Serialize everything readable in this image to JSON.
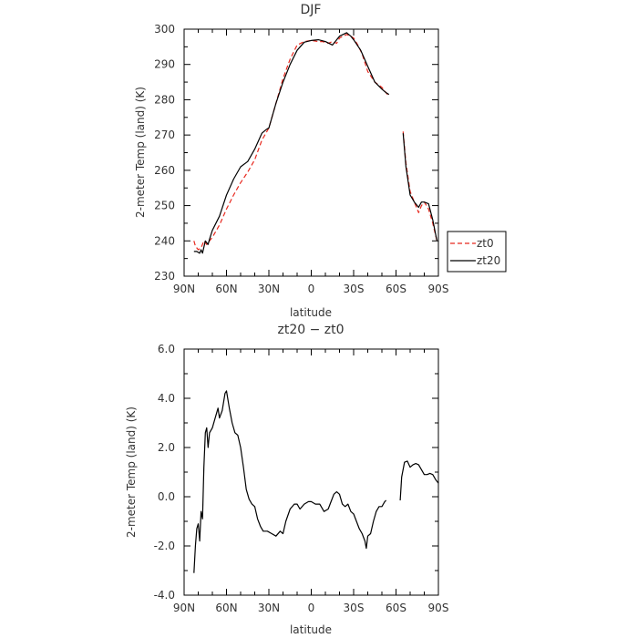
{
  "chart_data": [
    {
      "type": "line",
      "title": "DJF",
      "xlabel": "latitude",
      "ylabel": "2-meter Temp (land) (K)",
      "ylim": [
        230,
        300
      ],
      "xlim": [
        -90,
        90
      ],
      "x_ticks": [
        -90,
        -60,
        -30,
        0,
        30,
        60,
        90
      ],
      "x_tick_labels": [
        "90N",
        "60N",
        "30N",
        "0",
        "30S",
        "60S",
        "90S"
      ],
      "y_ticks": [
        230,
        240,
        250,
        260,
        270,
        280,
        290,
        300
      ],
      "y_tick_labels": [
        "230",
        "240",
        "250",
        "260",
        "270",
        "280",
        "290",
        "300"
      ],
      "grid": false,
      "legend_position": "right",
      "series": [
        {
          "name": "zt0",
          "color": "#e8281e",
          "dash": "dashed",
          "segments": [
            [
              [
                -83,
                240
              ],
              [
                -82,
                238.5
              ],
              [
                -80,
                237.5
              ],
              [
                -78,
                238
              ],
              [
                -76,
                240
              ],
              [
                -74,
                239
              ],
              [
                -72,
                240
              ],
              [
                -70,
                241
              ],
              [
                -65,
                244.5
              ],
              [
                -60,
                249
              ],
              [
                -55,
                253
              ],
              [
                -50,
                256.5
              ],
              [
                -45,
                259.5
              ],
              [
                -40,
                263
              ],
              [
                -35,
                268.5
              ],
              [
                -30,
                272
              ],
              [
                -25,
                279
              ],
              [
                -20,
                286
              ],
              [
                -15,
                291.5
              ],
              [
                -10,
                295.5
              ],
              [
                -5,
                296.5
              ],
              [
                0,
                296.8
              ],
              [
                5,
                296.5
              ],
              [
                8,
                296.5
              ],
              [
                12,
                296
              ],
              [
                15,
                296.5
              ],
              [
                18,
                296
              ],
              [
                20,
                297.5
              ],
              [
                25,
                298.5
              ],
              [
                28,
                298
              ],
              [
                30,
                297.5
              ],
              [
                33,
                295.5
              ],
              [
                36,
                293
              ],
              [
                40,
                288
              ],
              [
                45,
                285
              ],
              [
                50,
                283.5
              ],
              [
                53,
                282
              ],
              [
                55,
                281
              ]
            ],
            [
              [
                65,
                271
              ],
              [
                67,
                262
              ],
              [
                70,
                254
              ],
              [
                73,
                251
              ],
              [
                76,
                248
              ],
              [
                78,
                250
              ],
              [
                80,
                251
              ],
              [
                83,
                249
              ],
              [
                86,
                245
              ],
              [
                89,
                240
              ]
            ]
          ]
        },
        {
          "name": "zt20",
          "color": "#000000",
          "dash": "solid",
          "segments": [
            [
              [
                -83,
                237
              ],
              [
                -81,
                237
              ],
              [
                -79,
                236.5
              ],
              [
                -78,
                237.5
              ],
              [
                -77,
                236.5
              ],
              [
                -75,
                240
              ],
              [
                -73,
                239
              ],
              [
                -72,
                240.5
              ],
              [
                -70,
                243
              ],
              [
                -65,
                247
              ],
              [
                -60,
                253
              ],
              [
                -55,
                257.5
              ],
              [
                -50,
                261
              ],
              [
                -45,
                262.5
              ],
              [
                -40,
                266
              ],
              [
                -35,
                270.5
              ],
              [
                -32,
                271.5
              ],
              [
                -30,
                272
              ],
              [
                -25,
                279
              ],
              [
                -20,
                285
              ],
              [
                -15,
                290
              ],
              [
                -10,
                294
              ],
              [
                -5,
                296.3
              ],
              [
                0,
                296.8
              ],
              [
                5,
                297
              ],
              [
                10,
                296.5
              ],
              [
                15,
                295.5
              ],
              [
                20,
                298
              ],
              [
                25,
                299
              ],
              [
                28,
                298
              ],
              [
                30,
                297
              ],
              [
                35,
                294
              ],
              [
                40,
                289.5
              ],
              [
                45,
                285
              ],
              [
                50,
                283
              ],
              [
                53,
                282
              ],
              [
                55,
                281.5
              ]
            ],
            [
              [
                65,
                270.5
              ],
              [
                67,
                261
              ],
              [
                70,
                253
              ],
              [
                73,
                251
              ],
              [
                76,
                249.5
              ],
              [
                78,
                251
              ],
              [
                80,
                251
              ],
              [
                83,
                250.5
              ],
              [
                86,
                246
              ],
              [
                89,
                240
              ]
            ]
          ]
        }
      ]
    },
    {
      "type": "line",
      "title": "zt20 − zt0",
      "xlabel": "latitude",
      "ylabel": "2-meter Temp (land) (K)",
      "ylim": [
        -4.0,
        6.0
      ],
      "xlim": [
        -90,
        90
      ],
      "x_ticks": [
        -90,
        -60,
        -30,
        0,
        30,
        60,
        90
      ],
      "x_tick_labels": [
        "90N",
        "60N",
        "30N",
        "0",
        "30S",
        "60S",
        "90S"
      ],
      "y_ticks": [
        -4,
        -2,
        0,
        2,
        4,
        6
      ],
      "y_tick_labels": [
        "-4.0",
        "-2.0",
        "0.0",
        "2.0",
        "4.0",
        "6.0"
      ],
      "grid": false,
      "series": [
        {
          "color": "#000000",
          "dash": "solid",
          "segments": [
            [
              [
                -83,
                -3.1
              ],
              [
                -82,
                -2
              ],
              [
                -81,
                -1.3
              ],
              [
                -80,
                -1.1
              ],
              [
                -79,
                -1.8
              ],
              [
                -78,
                -0.6
              ],
              [
                -77,
                -0.9
              ],
              [
                -76,
                1.2
              ],
              [
                -75,
                2.6
              ],
              [
                -74,
                2.8
              ],
              [
                -73,
                2
              ],
              [
                -72,
                2.6
              ],
              [
                -70,
                2.8
              ],
              [
                -68,
                3.2
              ],
              [
                -66,
                3.6
              ],
              [
                -65,
                3.2
              ],
              [
                -63,
                3.5
              ],
              [
                -61,
                4.2
              ],
              [
                -60,
                4.3
              ],
              [
                -58,
                3.6
              ],
              [
                -56,
                3.0
              ],
              [
                -54,
                2.6
              ],
              [
                -52,
                2.5
              ],
              [
                -50,
                2.0
              ],
              [
                -48,
                1.2
              ],
              [
                -46,
                0.3
              ],
              [
                -44,
                -0.1
              ],
              [
                -42,
                -0.3
              ],
              [
                -40,
                -0.4
              ],
              [
                -38,
                -0.9
              ],
              [
                -36,
                -1.2
              ],
              [
                -34,
                -1.4
              ],
              [
                -31,
                -1.4
              ],
              [
                -28,
                -1.5
              ],
              [
                -25,
                -1.6
              ],
              [
                -22,
                -1.4
              ],
              [
                -20,
                -1.5
              ],
              [
                -18,
                -1.0
              ],
              [
                -15,
                -0.5
              ],
              [
                -12,
                -0.3
              ],
              [
                -10,
                -0.3
              ],
              [
                -8,
                -0.5
              ],
              [
                -5,
                -0.3
              ],
              [
                -2,
                -0.2
              ],
              [
                0,
                -0.2
              ],
              [
                3,
                -0.3
              ],
              [
                6,
                -0.3
              ],
              [
                9,
                -0.6
              ],
              [
                12,
                -0.5
              ],
              [
                14,
                -0.2
              ],
              [
                16,
                0.1
              ],
              [
                18,
                0.2
              ],
              [
                20,
                0.1
              ],
              [
                22,
                -0.3
              ],
              [
                24,
                -0.4
              ],
              [
                26,
                -0.3
              ],
              [
                28,
                -0.6
              ],
              [
                30,
                -0.7
              ],
              [
                32,
                -1.0
              ],
              [
                34,
                -1.3
              ],
              [
                36,
                -1.5
              ],
              [
                38,
                -1.8
              ],
              [
                39,
                -2.1
              ],
              [
                40,
                -1.6
              ],
              [
                42,
                -1.5
              ],
              [
                44,
                -1.0
              ],
              [
                46,
                -0.6
              ],
              [
                48,
                -0.4
              ],
              [
                50,
                -0.4
              ],
              [
                52,
                -0.2
              ],
              [
                53,
                -0.15
              ]
            ],
            [
              [
                63,
                -0.15
              ],
              [
                64,
                0.8
              ],
              [
                66,
                1.4
              ],
              [
                68,
                1.45
              ],
              [
                70,
                1.2
              ],
              [
                72,
                1.3
              ],
              [
                74,
                1.35
              ],
              [
                76,
                1.3
              ],
              [
                78,
                1.1
              ],
              [
                80,
                0.9
              ],
              [
                82,
                0.9
              ],
              [
                84,
                0.95
              ],
              [
                86,
                0.9
              ],
              [
                88,
                0.7
              ],
              [
                90,
                0.55
              ]
            ]
          ]
        }
      ]
    }
  ]
}
